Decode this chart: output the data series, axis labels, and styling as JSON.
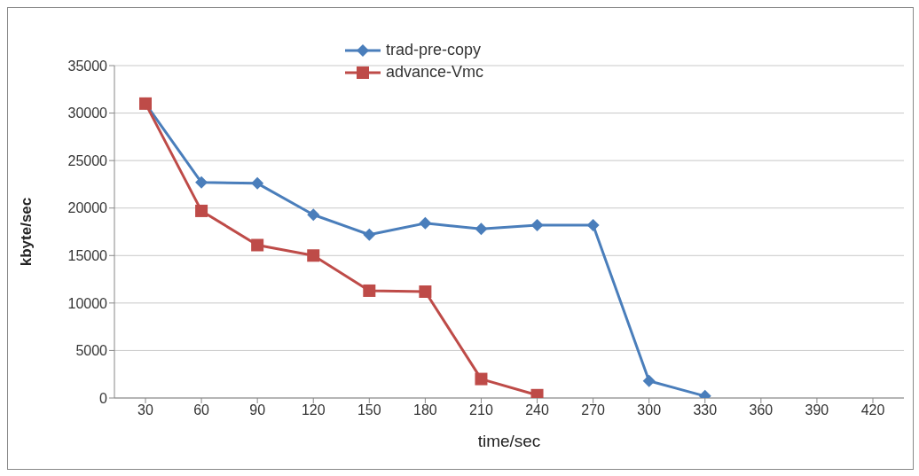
{
  "chart_data": {
    "type": "line",
    "xlabel": "time/sec",
    "ylabel": "kbyte/sec",
    "categories": [
      "30",
      "60",
      "90",
      "120",
      "150",
      "180",
      "210",
      "240",
      "270",
      "300",
      "330",
      "360",
      "390",
      "420"
    ],
    "series": [
      {
        "name": "trad-pre-copy",
        "color": "#4a7ebb",
        "marker": "diamond",
        "values": [
          31000,
          22700,
          22600,
          19300,
          17200,
          18400,
          17800,
          18200,
          18200,
          1800,
          200,
          null,
          null,
          null
        ]
      },
      {
        "name": "advance-Vmc",
        "color": "#be4b48",
        "marker": "square",
        "values": [
          31000,
          19700,
          16100,
          15000,
          11300,
          11200,
          2000,
          300,
          null,
          null,
          null,
          null,
          null,
          null
        ]
      }
    ],
    "ylim": [
      0,
      35000
    ],
    "yticks": [
      0,
      5000,
      10000,
      15000,
      20000,
      25000,
      30000,
      35000
    ],
    "grid": "y",
    "legend": "top",
    "line_style": "solid"
  }
}
